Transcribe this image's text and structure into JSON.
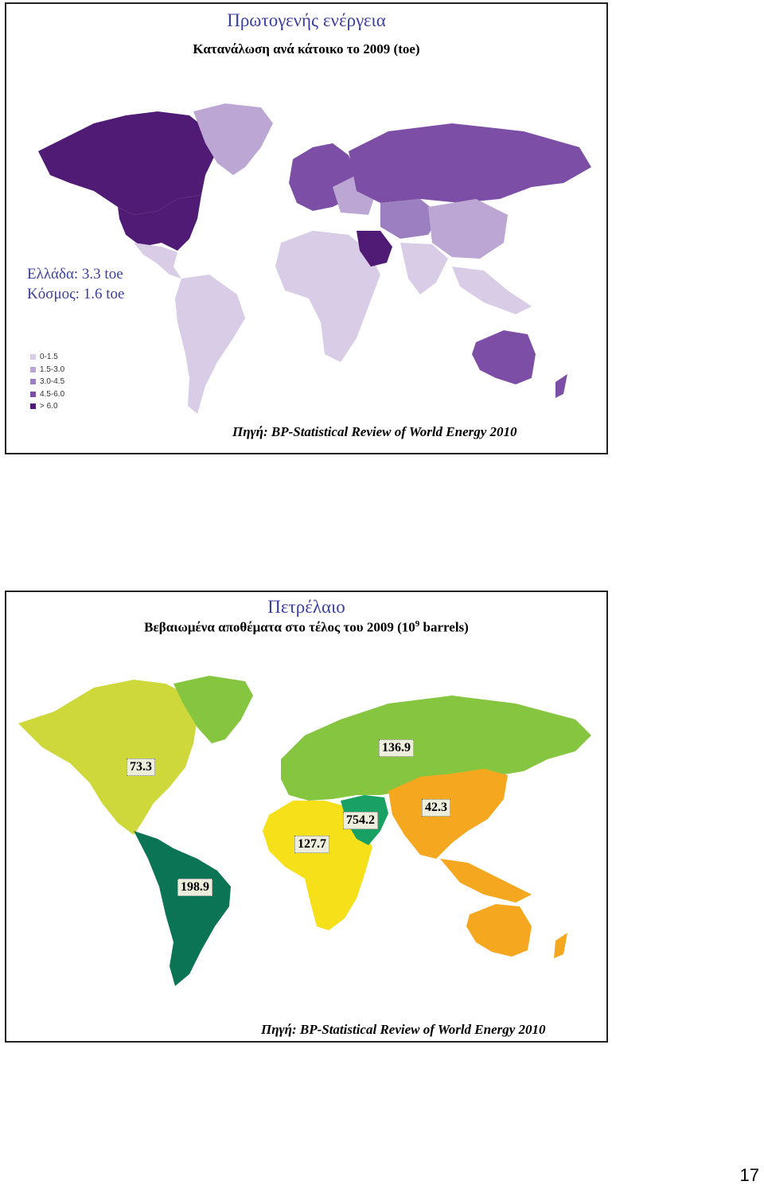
{
  "slide1": {
    "title": "Πρωτογενής ενέργεια",
    "subtitle": "Κατανάλωση ανά κάτοικο το 2009 (toe)",
    "greece_label": "Ελλάδα: 3.3 toe",
    "world_label": "Κόσμος: 1.6 toe",
    "legend": [
      {
        "label": "0-1.5",
        "color": "#d8cce6"
      },
      {
        "label": "1.5-3.0",
        "color": "#bba6d4"
      },
      {
        "label": "3.0-4.5",
        "color": "#9c7fc0"
      },
      {
        "label": "4.5-6.0",
        "color": "#7d4ea6"
      },
      {
        "label": "> 6.0",
        "color": "#4f1b74"
      }
    ],
    "source": "Πηγή: BP-Statistical Review of World Energy 2010"
  },
  "slide2": {
    "title": "Πετρέλαιο",
    "subtitle_main": "Βεβαιωμένα αποθέματα στο τέλος του 2009 (10",
    "subtitle_sup": "9",
    "subtitle_end": " barrels)",
    "regions": [
      {
        "region": "north-america",
        "value": "73.3",
        "color": "#cfd83b"
      },
      {
        "region": "europe-eurasia",
        "value": "136.9",
        "color": "#86c540"
      },
      {
        "region": "asia-pacific",
        "value": "42.3",
        "color": "#f4a71f"
      },
      {
        "region": "middle-east",
        "value": "754.2",
        "color": "#18a065"
      },
      {
        "region": "africa",
        "value": "127.7",
        "color": "#f6e01a"
      },
      {
        "region": "south-central-america",
        "value": "198.9",
        "color": "#0b7455"
      }
    ],
    "source": "Πηγή: BP-Statistical Review of World Energy 2010"
  },
  "page_number": "17"
}
